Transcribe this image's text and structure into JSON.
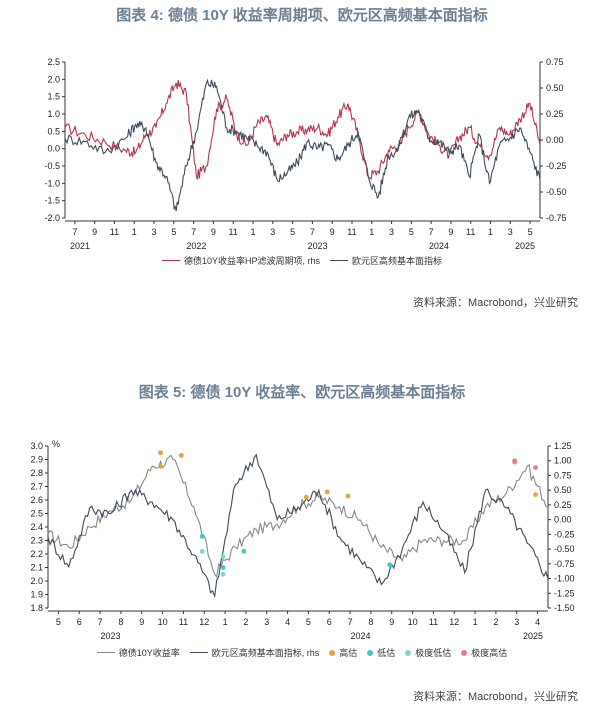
{
  "chart_data": [
    {
      "type": "line",
      "title": "图表 4:  德债 10Y 收益率周期项、欧元区高频基本面指标",
      "source": "资料来源：Macrobond，兴业研究",
      "left_axis": {
        "min": -2.0,
        "max": 2.5,
        "ticks": [
          "-2.0",
          "-1.5",
          "-1.0",
          "-0.5",
          "0.0",
          "0.5",
          "1.0",
          "1.5",
          "2.0",
          "2.5"
        ]
      },
      "right_axis": {
        "min": -0.75,
        "max": 0.75,
        "ticks": [
          "-0.75",
          "-0.50",
          "-0.25",
          "0.00",
          "0.25",
          "0.50",
          "0.75"
        ]
      },
      "x_month_ticks": [
        "7",
        "9",
        "11",
        "1",
        "3",
        "5",
        "7",
        "9",
        "11",
        "1",
        "3",
        "5",
        "7",
        "9",
        "11",
        "1",
        "3",
        "5",
        "7",
        "9",
        "11",
        "1",
        "3",
        "5"
      ],
      "x_year_labels": [
        "2021",
        "2022",
        "2023",
        "2024",
        "2025"
      ],
      "x_range": [
        "2021-06",
        "2025-05"
      ],
      "legend": [
        "德债10Y收益率HP滤波周期项, rhs",
        "欧元区高频基本面指标"
      ],
      "series": [
        {
          "name": "德债10Y收益率HP滤波周期项, rhs",
          "axis": "right",
          "color": "#b5364a",
          "x": [
            "2021-06",
            "2021-08",
            "2021-10",
            "2021-12",
            "2022-01",
            "2022-02",
            "2022-03",
            "2022-04",
            "2022-05",
            "2022-06",
            "2022-07",
            "2022-08",
            "2022-09",
            "2022-10",
            "2022-11",
            "2022-12",
            "2023-01",
            "2023-02",
            "2023-03",
            "2023-04",
            "2023-05",
            "2023-06",
            "2023-07",
            "2023-08",
            "2023-09",
            "2023-10",
            "2023-11",
            "2023-12",
            "2024-01",
            "2024-02",
            "2024-03",
            "2024-04",
            "2024-05",
            "2024-06",
            "2024-07",
            "2024-08",
            "2024-09",
            "2024-10",
            "2024-11",
            "2024-12",
            "2025-01",
            "2025-02",
            "2025-03",
            "2025-04",
            "2025-05"
          ],
          "values": [
            0.12,
            0.05,
            -0.02,
            -0.1,
            -0.12,
            0.05,
            0.12,
            0.35,
            0.55,
            0.45,
            -0.35,
            -0.25,
            0.3,
            0.4,
            0.05,
            -0.05,
            0.15,
            0.22,
            -0.05,
            0.05,
            0.08,
            0.1,
            0.12,
            0.05,
            0.22,
            0.35,
            0.05,
            -0.35,
            -0.3,
            -0.1,
            -0.05,
            0.12,
            0.28,
            0.05,
            -0.05,
            -0.15,
            0.02,
            0.12,
            -0.05,
            -0.15,
            0.12,
            0.05,
            0.2,
            0.35,
            -0.05
          ]
        },
        {
          "name": "欧元区高频基本面指标",
          "axis": "left",
          "color": "#3f4a5c",
          "x": [
            "2021-06",
            "2021-08",
            "2021-10",
            "2021-12",
            "2022-01",
            "2022-02",
            "2022-03",
            "2022-04",
            "2022-05",
            "2022-06",
            "2022-07",
            "2022-08",
            "2022-09",
            "2022-10",
            "2022-11",
            "2022-12",
            "2023-01",
            "2023-02",
            "2023-03",
            "2023-04",
            "2023-05",
            "2023-06",
            "2023-07",
            "2023-08",
            "2023-09",
            "2023-10",
            "2023-11",
            "2023-12",
            "2024-01",
            "2024-02",
            "2024-03",
            "2024-04",
            "2024-05",
            "2024-06",
            "2024-07",
            "2024-08",
            "2024-09",
            "2024-10",
            "2024-11",
            "2024-12",
            "2025-01",
            "2025-02",
            "2025-03",
            "2025-04",
            "2025-05"
          ],
          "values": [
            0.3,
            0.2,
            -0.1,
            0.3,
            0.7,
            0.6,
            -0.4,
            -0.8,
            -1.8,
            -0.5,
            0.5,
            1.9,
            1.8,
            0.6,
            0.5,
            0.3,
            0.1,
            -0.1,
            -0.9,
            -0.7,
            -0.4,
            0.2,
            0.0,
            0.1,
            -0.3,
            0.1,
            0.5,
            -0.8,
            -1.4,
            -0.2,
            0.0,
            0.9,
            1.1,
            0.3,
            0.2,
            -0.1,
            0.1,
            -0.8,
            0.4,
            -1.0,
            0.1,
            0.3,
            0.6,
            -0.1,
            -0.9
          ]
        }
      ]
    },
    {
      "type": "line",
      "title": "图表 5:  德债 10Y 收益率、欧元区高频基本面指标",
      "source": "资料来源：Macrobond，兴业研究",
      "left_unit": "%",
      "left_axis": {
        "min": 1.8,
        "max": 3.0,
        "ticks": [
          "1.8",
          "1.9",
          "2.0",
          "2.1",
          "2.2",
          "2.3",
          "2.4",
          "2.5",
          "2.6",
          "2.7",
          "2.8",
          "2.9",
          "3.0"
        ]
      },
      "right_axis": {
        "min": -1.5,
        "max": 1.25,
        "ticks": [
          "-1.50",
          "-1.25",
          "-1.00",
          "-0.75",
          "-0.50",
          "-0.25",
          "0.00",
          "0.25",
          "0.50",
          "0.75",
          "1.00",
          "1.25"
        ]
      },
      "x_month_ticks": [
        "5",
        "6",
        "7",
        "8",
        "9",
        "10",
        "11",
        "12",
        "1",
        "2",
        "3",
        "4",
        "5",
        "6",
        "7",
        "8",
        "9",
        "10",
        "11",
        "12",
        "1",
        "2",
        "3",
        "4"
      ],
      "x_year_labels": [
        "2023",
        "2024",
        "2025"
      ],
      "x_range": [
        "2023-04",
        "2025-04"
      ],
      "legend": [
        "德债10Y收益率",
        "欧元区高频基本面指标, rhs",
        "高估",
        "低估",
        "极度低估",
        "极度高估"
      ],
      "series": [
        {
          "name": "德债10Y收益率",
          "axis": "left",
          "color": "#888888",
          "x": [
            "2023-04",
            "2023-05",
            "2023-06",
            "2023-07",
            "2023-08",
            "2023-09",
            "2023-10",
            "2023-11",
            "2023-12",
            "2024-01",
            "2024-02",
            "2024-03",
            "2024-04",
            "2024-05",
            "2024-06",
            "2024-07",
            "2024-08",
            "2024-09",
            "2024-10",
            "2024-11",
            "2024-12",
            "2025-01",
            "2025-02",
            "2025-03",
            "2025-04"
          ],
          "values": [
            2.35,
            2.25,
            2.4,
            2.52,
            2.6,
            2.85,
            2.9,
            2.55,
            2.05,
            2.25,
            2.38,
            2.42,
            2.55,
            2.62,
            2.55,
            2.45,
            2.25,
            2.15,
            2.3,
            2.3,
            2.3,
            2.55,
            2.65,
            2.85,
            2.55
          ]
        },
        {
          "name": "欧元区高频基本面指标, rhs",
          "axis": "right",
          "color": "#3f4a5c",
          "x": [
            "2023-04",
            "2023-05",
            "2023-06",
            "2023-07",
            "2023-08",
            "2023-09",
            "2023-10",
            "2023-11",
            "2023-12",
            "2024-01",
            "2024-02",
            "2024-03",
            "2024-04",
            "2024-05",
            "2024-06",
            "2024-07",
            "2024-08",
            "2024-09",
            "2024-10",
            "2024-11",
            "2024-12",
            "2025-01",
            "2025-02",
            "2025-03",
            "2025-04"
          ],
          "values": [
            -0.3,
            -0.8,
            0.2,
            0.1,
            0.5,
            0.3,
            0.0,
            -0.6,
            -1.3,
            0.6,
            1.1,
            0.0,
            0.2,
            0.5,
            -0.3,
            -0.7,
            -1.1,
            -0.5,
            0.3,
            -0.2,
            -0.9,
            0.5,
            0.2,
            -0.4,
            -1.0
          ]
        }
      ],
      "markers": [
        {
          "name": "高估",
          "color": "#e6a23c",
          "x": [
            "2023-09",
            "2023-09",
            "2023-10",
            "2024-04",
            "2024-05",
            "2024-06",
            "2025-02",
            "2025-03"
          ],
          "values": [
            2.85,
            2.95,
            2.93,
            2.62,
            2.66,
            2.63,
            2.88,
            2.64
          ]
        },
        {
          "name": "低估",
          "color": "#3ec9c9",
          "x": [
            "2023-11",
            "2023-12",
            "2024-01",
            "2024-08"
          ],
          "values": [
            2.33,
            2.1,
            2.22,
            2.12
          ]
        },
        {
          "name": "极度低估",
          "color": "#7fd6d6",
          "x": [
            "2023-11",
            "2023-12",
            "2023-12"
          ],
          "values": [
            2.22,
            2.18,
            2.05
          ]
        },
        {
          "name": "极度高估",
          "color": "#e57a9a",
          "x": [
            "2025-02",
            "2025-03"
          ],
          "values": [
            2.89,
            2.84
          ]
        }
      ]
    }
  ]
}
